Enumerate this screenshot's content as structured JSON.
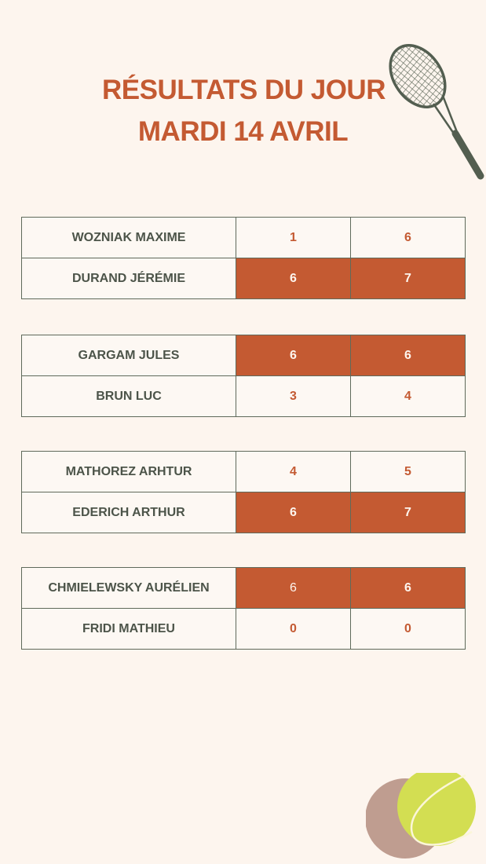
{
  "header": {
    "title_line1": "RÉSULTATS DU JOUR",
    "title_line2": "MARDI 14 AVRIL",
    "icon": "tennis-racket-icon"
  },
  "colors": {
    "accent": "#c45a32",
    "text": "#4c5449",
    "background": "#fdf5ee",
    "ball": "#d3de52",
    "circle": "#bf9d90"
  },
  "matches": [
    {
      "players": [
        {
          "name": "WOZNIAK MAXIME",
          "sets": [
            "1",
            "6"
          ],
          "winner": false
        },
        {
          "name": "DURAND JÉRÉMIE",
          "sets": [
            "6",
            "7"
          ],
          "winner": true
        }
      ]
    },
    {
      "players": [
        {
          "name": "GARGAM JULES",
          "sets": [
            "6",
            "6"
          ],
          "winner": true
        },
        {
          "name": "BRUN LUC",
          "sets": [
            "3",
            "4"
          ],
          "winner": false
        }
      ]
    },
    {
      "players": [
        {
          "name": "MATHOREZ ARHTUR",
          "sets": [
            "4",
            "5"
          ],
          "winner": false
        },
        {
          "name": "EDERICH ARTHUR",
          "sets": [
            "6",
            "7"
          ],
          "winner": true
        }
      ]
    },
    {
      "players": [
        {
          "name": "CHMIELEWSKY AURÉLIEN",
          "sets": [
            "6",
            "6"
          ],
          "winner": true
        },
        {
          "name": "FRIDI MATHIEU",
          "sets": [
            "0",
            "0"
          ],
          "winner": false
        }
      ]
    }
  ],
  "decor": {
    "icon": "tennis-ball-icon"
  }
}
